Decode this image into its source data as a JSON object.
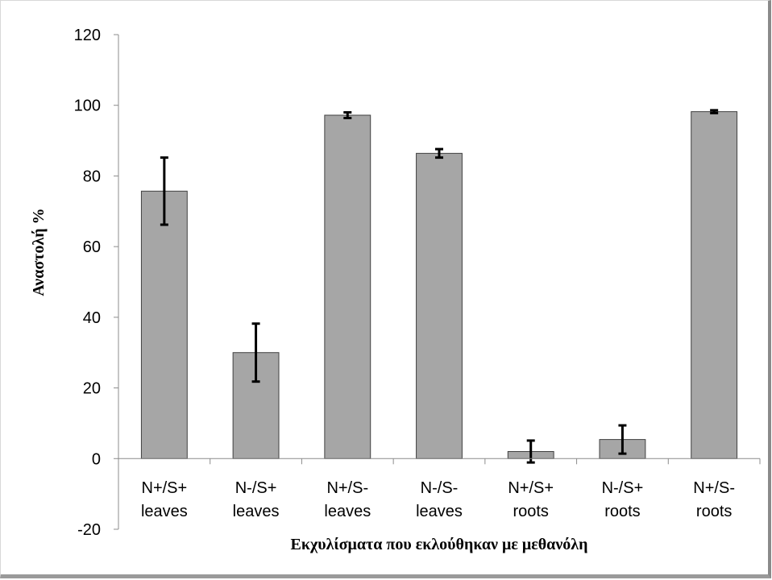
{
  "chart_data": {
    "type": "bar",
    "categories": [
      [
        "N+/S+",
        "leaves"
      ],
      [
        "N-/S+",
        "leaves"
      ],
      [
        "N+/S-",
        "leaves"
      ],
      [
        "N-/S-",
        "leaves"
      ],
      [
        "N+/S+",
        "roots"
      ],
      [
        "N-/S+",
        "roots"
      ],
      [
        "N+/S-",
        "roots"
      ]
    ],
    "values": [
      75.7,
      30,
      97.2,
      86.4,
      2,
      5.4,
      98.2
    ],
    "errors": [
      9.5,
      8.2,
      0.8,
      1.2,
      3.1,
      4,
      0.4
    ],
    "ylabel": "Αναστολή %",
    "xlabel": "Εκχυλίσματα που εκλούθηκαν με μεθανόλη",
    "ylim": [
      -20,
      120
    ],
    "yticks": [
      -20,
      0,
      20,
      40,
      60,
      80,
      100,
      120
    ],
    "grid": false,
    "bar_color": "#a6a6a6",
    "bar_edge_color": "#404040"
  }
}
